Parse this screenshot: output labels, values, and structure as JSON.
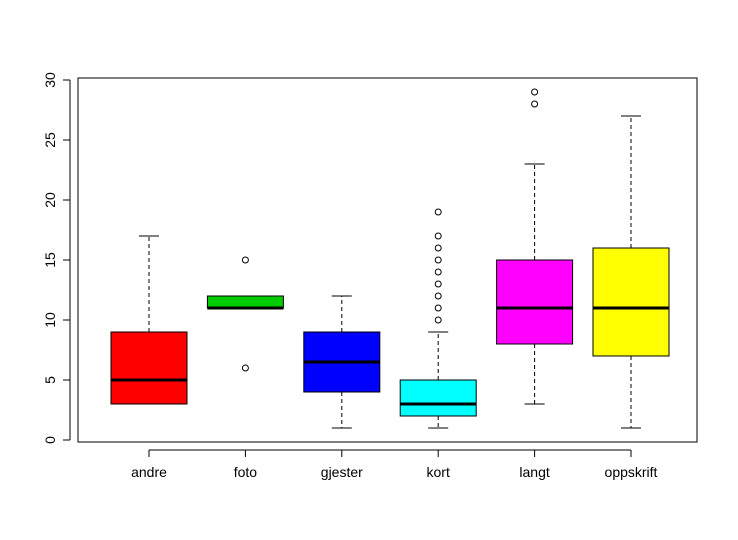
{
  "chart_data": {
    "type": "boxplot",
    "title": "",
    "xlabel": "",
    "ylabel": "",
    "ylim": [
      0,
      30
    ],
    "yticks": [
      0,
      5,
      10,
      15,
      20,
      25,
      30
    ],
    "grid": false,
    "categories": [
      "andre",
      "foto",
      "gjester",
      "kort",
      "langt",
      "oppskrift"
    ],
    "boxes": [
      {
        "category": "andre",
        "color": "#ff0000",
        "whisker_low": 3,
        "q1": 3,
        "median": 5,
        "q3": 9,
        "whisker_high": 17,
        "outliers": []
      },
      {
        "category": "foto",
        "color": "#00cd00",
        "whisker_low": 11,
        "q1": 11,
        "median": 11,
        "q3": 12,
        "whisker_high": 12,
        "outliers": [
          15,
          6
        ]
      },
      {
        "category": "gjester",
        "color": "#0000ff",
        "whisker_low": 1,
        "q1": 4,
        "median": 6.5,
        "q3": 9,
        "whisker_high": 12,
        "outliers": []
      },
      {
        "category": "kort",
        "color": "#00ffff",
        "whisker_low": 1,
        "q1": 2,
        "median": 3,
        "q3": 5,
        "whisker_high": 9,
        "outliers": [
          10,
          11,
          12,
          13,
          14,
          15,
          16,
          17,
          19
        ]
      },
      {
        "category": "langt",
        "color": "#ff00ff",
        "whisker_low": 3,
        "q1": 8,
        "median": 11,
        "q3": 15,
        "whisker_high": 23,
        "outliers": [
          28,
          29
        ]
      },
      {
        "category": "oppskrift",
        "color": "#ffff00",
        "whisker_low": 1,
        "q1": 7,
        "median": 11,
        "q3": 16,
        "whisker_high": 27,
        "outliers": []
      }
    ]
  }
}
